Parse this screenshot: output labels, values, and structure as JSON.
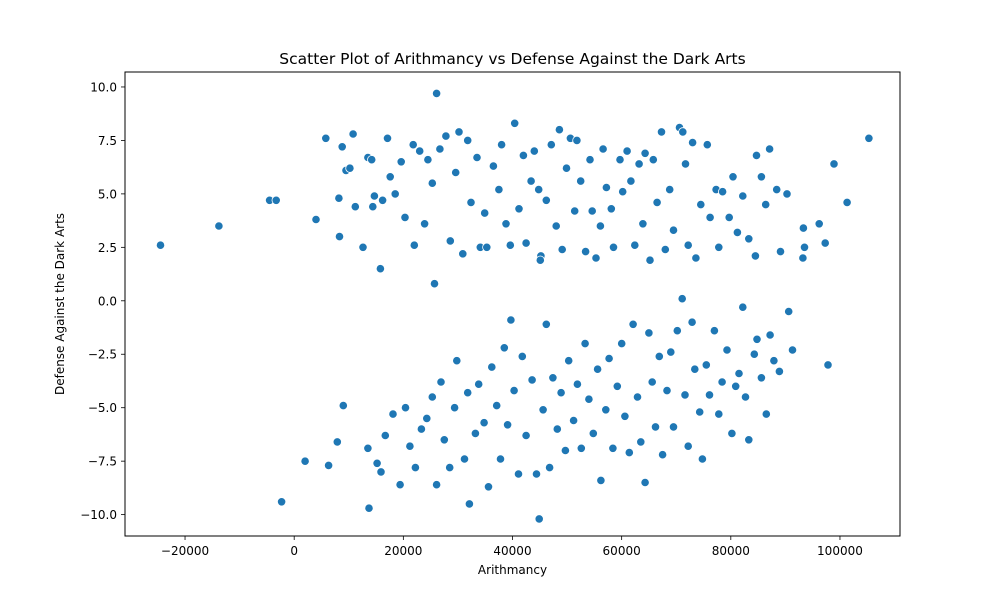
{
  "chart_data": {
    "type": "scatter",
    "title": "Scatter Plot of Arithmancy vs Defense Against the Dark Arts",
    "xlabel": "Arithmancy",
    "ylabel": "Defense Against the Dark Arts",
    "xlim": [
      -31000,
      111000
    ],
    "ylim": [
      -11.0,
      10.7
    ],
    "xticks": [
      -20000,
      0,
      20000,
      40000,
      60000,
      80000,
      100000
    ],
    "xtick_labels": [
      "−20000",
      "0",
      "20000",
      "40000",
      "60000",
      "80000",
      "100000"
    ],
    "yticks": [
      -10.0,
      -7.5,
      -5.0,
      -2.5,
      0.0,
      2.5,
      5.0,
      7.5,
      10.0
    ],
    "ytick_labels": [
      "−10.0",
      "−7.5",
      "−5.0",
      "−2.5",
      "0.0",
      "2.5",
      "5.0",
      "7.5",
      "10.0"
    ],
    "grid": false,
    "marker_color": "#1f77b4",
    "marker_edge_color": "#ffffff",
    "series": [
      {
        "values": [
          [
            -24500,
            2.6
          ],
          [
            -13800,
            3.5
          ],
          [
            -4500,
            4.7
          ],
          [
            -3300,
            4.7
          ],
          [
            4000,
            3.8
          ],
          [
            5800,
            7.6
          ],
          [
            8200,
            4.8
          ],
          [
            8300,
            3.0
          ],
          [
            8800,
            7.2
          ],
          [
            9500,
            6.1
          ],
          [
            10200,
            6.2
          ],
          [
            10800,
            7.8
          ],
          [
            11200,
            4.4
          ],
          [
            12600,
            2.5
          ],
          [
            13500,
            6.7
          ],
          [
            14200,
            6.6
          ],
          [
            14400,
            4.4
          ],
          [
            14700,
            4.9
          ],
          [
            15800,
            1.5
          ],
          [
            16200,
            4.7
          ],
          [
            17100,
            7.6
          ],
          [
            17600,
            5.8
          ],
          [
            18500,
            5.0
          ],
          [
            19600,
            6.5
          ],
          [
            20300,
            3.9
          ],
          [
            21800,
            7.3
          ],
          [
            22000,
            2.6
          ],
          [
            23000,
            7.0
          ],
          [
            23900,
            3.6
          ],
          [
            24500,
            6.6
          ],
          [
            25300,
            5.5
          ],
          [
            25700,
            0.8
          ],
          [
            26100,
            9.7
          ],
          [
            26700,
            7.1
          ],
          [
            27800,
            7.7
          ],
          [
            28600,
            2.8
          ],
          [
            29600,
            6.0
          ],
          [
            30200,
            7.9
          ],
          [
            30900,
            2.2
          ],
          [
            31800,
            7.5
          ],
          [
            32400,
            4.6
          ],
          [
            33500,
            6.7
          ],
          [
            34100,
            2.5
          ],
          [
            34900,
            4.1
          ],
          [
            35300,
            2.5
          ],
          [
            36500,
            6.3
          ],
          [
            37500,
            5.2
          ],
          [
            38000,
            7.3
          ],
          [
            38800,
            3.6
          ],
          [
            39600,
            2.6
          ],
          [
            40400,
            8.3
          ],
          [
            41200,
            4.3
          ],
          [
            42000,
            6.8
          ],
          [
            42500,
            2.7
          ],
          [
            43400,
            5.6
          ],
          [
            44000,
            7.0
          ],
          [
            44800,
            5.2
          ],
          [
            45200,
            2.1
          ],
          [
            45100,
            1.9
          ],
          [
            46200,
            4.7
          ],
          [
            47100,
            7.3
          ],
          [
            48000,
            3.5
          ],
          [
            48600,
            8.0
          ],
          [
            49100,
            2.4
          ],
          [
            49900,
            6.2
          ],
          [
            50600,
            7.6
          ],
          [
            51400,
            4.2
          ],
          [
            51800,
            7.5
          ],
          [
            52500,
            5.6
          ],
          [
            53400,
            2.3
          ],
          [
            54200,
            6.6
          ],
          [
            54600,
            4.2
          ],
          [
            55300,
            2.0
          ],
          [
            56100,
            3.5
          ],
          [
            56600,
            7.1
          ],
          [
            57200,
            5.3
          ],
          [
            58100,
            4.3
          ],
          [
            58500,
            2.5
          ],
          [
            59700,
            6.6
          ],
          [
            60200,
            5.1
          ],
          [
            61000,
            7.0
          ],
          [
            61700,
            5.6
          ],
          [
            62400,
            2.6
          ],
          [
            63200,
            6.4
          ],
          [
            63900,
            3.6
          ],
          [
            64300,
            6.9
          ],
          [
            65200,
            1.9
          ],
          [
            65800,
            6.6
          ],
          [
            66500,
            4.6
          ],
          [
            67300,
            7.9
          ],
          [
            68000,
            2.4
          ],
          [
            68800,
            5.2
          ],
          [
            69500,
            3.3
          ],
          [
            70600,
            8.1
          ],
          [
            71200,
            7.9
          ],
          [
            71700,
            6.4
          ],
          [
            72200,
            2.6
          ],
          [
            73000,
            7.4
          ],
          [
            73600,
            2.0
          ],
          [
            74500,
            4.5
          ],
          [
            75700,
            7.3
          ],
          [
            76200,
            3.9
          ],
          [
            77300,
            5.2
          ],
          [
            77800,
            2.5
          ],
          [
            78500,
            5.1
          ],
          [
            79700,
            3.9
          ],
          [
            80400,
            5.8
          ],
          [
            81200,
            3.2
          ],
          [
            82200,
            4.9
          ],
          [
            83300,
            2.9
          ],
          [
            84500,
            2.1
          ],
          [
            84700,
            6.8
          ],
          [
            85600,
            5.8
          ],
          [
            86400,
            4.5
          ],
          [
            87100,
            7.1
          ],
          [
            88400,
            5.2
          ],
          [
            89100,
            2.3
          ],
          [
            90300,
            5.0
          ],
          [
            93200,
            2.0
          ],
          [
            93500,
            2.5
          ],
          [
            93300,
            3.4
          ],
          [
            96200,
            3.6
          ],
          [
            97300,
            2.7
          ],
          [
            98900,
            6.4
          ],
          [
            101300,
            4.6
          ],
          [
            105300,
            7.6
          ],
          [
            -2300,
            -9.4
          ],
          [
            2000,
            -7.5
          ],
          [
            6300,
            -7.7
          ],
          [
            7900,
            -6.6
          ],
          [
            9000,
            -4.9
          ],
          [
            13500,
            -6.9
          ],
          [
            13700,
            -9.7
          ],
          [
            15200,
            -7.6
          ],
          [
            15900,
            -8.0
          ],
          [
            16700,
            -6.3
          ],
          [
            18100,
            -5.3
          ],
          [
            19400,
            -8.6
          ],
          [
            20400,
            -5.0
          ],
          [
            21200,
            -6.8
          ],
          [
            22200,
            -7.8
          ],
          [
            23300,
            -6.0
          ],
          [
            24300,
            -5.5
          ],
          [
            25300,
            -4.5
          ],
          [
            26100,
            -8.6
          ],
          [
            26900,
            -3.8
          ],
          [
            27500,
            -6.5
          ],
          [
            28500,
            -7.8
          ],
          [
            29400,
            -5.0
          ],
          [
            29800,
            -2.8
          ],
          [
            31200,
            -7.4
          ],
          [
            31800,
            -4.3
          ],
          [
            32100,
            -9.5
          ],
          [
            33200,
            -6.2
          ],
          [
            33800,
            -3.9
          ],
          [
            34800,
            -5.7
          ],
          [
            35600,
            -8.7
          ],
          [
            36200,
            -3.1
          ],
          [
            37100,
            -4.9
          ],
          [
            37800,
            -7.4
          ],
          [
            38500,
            -2.2
          ],
          [
            39100,
            -5.8
          ],
          [
            39700,
            -0.9
          ],
          [
            40300,
            -4.2
          ],
          [
            41100,
            -8.1
          ],
          [
            41800,
            -2.6
          ],
          [
            42500,
            -6.3
          ],
          [
            43600,
            -3.7
          ],
          [
            44400,
            -8.1
          ],
          [
            44900,
            -10.2
          ],
          [
            45600,
            -5.1
          ],
          [
            46200,
            -1.1
          ],
          [
            46800,
            -7.8
          ],
          [
            47400,
            -3.6
          ],
          [
            48200,
            -6.0
          ],
          [
            48900,
            -4.3
          ],
          [
            49700,
            -7.0
          ],
          [
            50300,
            -2.8
          ],
          [
            51200,
            -5.6
          ],
          [
            51900,
            -3.9
          ],
          [
            52600,
            -6.9
          ],
          [
            53300,
            -2.0
          ],
          [
            54000,
            -4.6
          ],
          [
            54800,
            -6.2
          ],
          [
            55600,
            -3.2
          ],
          [
            56200,
            -8.4
          ],
          [
            57100,
            -5.1
          ],
          [
            57700,
            -2.7
          ],
          [
            58400,
            -6.9
          ],
          [
            59200,
            -4.0
          ],
          [
            60000,
            -2.0
          ],
          [
            60600,
            -5.4
          ],
          [
            61400,
            -7.1
          ],
          [
            62100,
            -1.1
          ],
          [
            62900,
            -4.5
          ],
          [
            63500,
            -6.6
          ],
          [
            64300,
            -8.5
          ],
          [
            65000,
            -1.5
          ],
          [
            65600,
            -3.8
          ],
          [
            66200,
            -5.9
          ],
          [
            66900,
            -2.6
          ],
          [
            67500,
            -7.2
          ],
          [
            68300,
            -4.2
          ],
          [
            69000,
            -2.4
          ],
          [
            69500,
            -5.9
          ],
          [
            70200,
            -1.4
          ],
          [
            71100,
            0.1
          ],
          [
            71600,
            -4.4
          ],
          [
            72200,
            -6.8
          ],
          [
            72900,
            -1.0
          ],
          [
            73400,
            -3.2
          ],
          [
            74300,
            -5.2
          ],
          [
            74800,
            -7.4
          ],
          [
            75500,
            -3.0
          ],
          [
            76100,
            -4.4
          ],
          [
            77000,
            -1.4
          ],
          [
            77800,
            -5.3
          ],
          [
            78400,
            -3.8
          ],
          [
            79300,
            -2.3
          ],
          [
            80200,
            -6.2
          ],
          [
            80900,
            -4.0
          ],
          [
            81500,
            -3.4
          ],
          [
            82200,
            -0.3
          ],
          [
            82700,
            -4.5
          ],
          [
            83300,
            -6.5
          ],
          [
            84300,
            -2.5
          ],
          [
            84800,
            -1.8
          ],
          [
            85600,
            -3.6
          ],
          [
            86500,
            -5.3
          ],
          [
            87200,
            -1.6
          ],
          [
            87900,
            -2.8
          ],
          [
            88900,
            -3.3
          ],
          [
            90600,
            -0.5
          ],
          [
            91300,
            -2.3
          ],
          [
            97800,
            -3.0
          ]
        ]
      }
    ]
  }
}
